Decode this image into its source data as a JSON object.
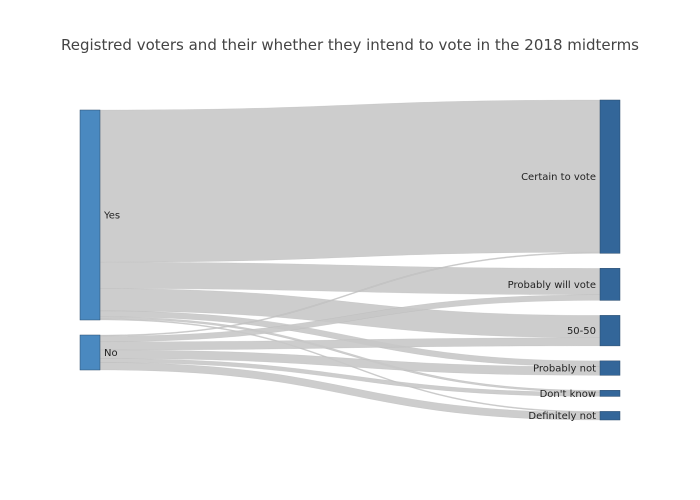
{
  "chart_data": {
    "type": "sankey",
    "title": "Registred voters and their whether they intend to vote in the 2018 midterms",
    "node_color_source": "#4a89c0",
    "node_color_target": "#336699",
    "link_color": "#c8c8c8",
    "sources": [
      {
        "id": "yes",
        "label": "Yes"
      },
      {
        "id": "no",
        "label": "No"
      }
    ],
    "targets": [
      {
        "id": "certain",
        "label": "Certain to vote"
      },
      {
        "id": "probably",
        "label": "Probably will vote"
      },
      {
        "id": "fifty",
        "label": "50-50"
      },
      {
        "id": "probnot",
        "label": "Probably not"
      },
      {
        "id": "dontknow",
        "label": "Don't know"
      },
      {
        "id": "defnot",
        "label": "Definitely not"
      }
    ],
    "links": [
      {
        "source": "yes",
        "target": "certain",
        "value": 67.4
      },
      {
        "source": "yes",
        "target": "probably",
        "value": 11.7
      },
      {
        "source": "yes",
        "target": "fifty",
        "value": 9.9
      },
      {
        "source": "yes",
        "target": "probnot",
        "value": 2.6
      },
      {
        "source": "yes",
        "target": "dontknow",
        "value": 0.9
      },
      {
        "source": "yes",
        "target": "defnot",
        "value": 0.5
      },
      {
        "source": "no",
        "target": "certain",
        "value": 0.5
      },
      {
        "source": "no",
        "target": "probably",
        "value": 2.5
      },
      {
        "source": "no",
        "target": "fifty",
        "value": 3.6
      },
      {
        "source": "no",
        "target": "probnot",
        "value": 3.8
      },
      {
        "source": "no",
        "target": "dontknow",
        "value": 1.8
      },
      {
        "source": "no",
        "target": "defnot",
        "value": 3.3
      }
    ]
  }
}
